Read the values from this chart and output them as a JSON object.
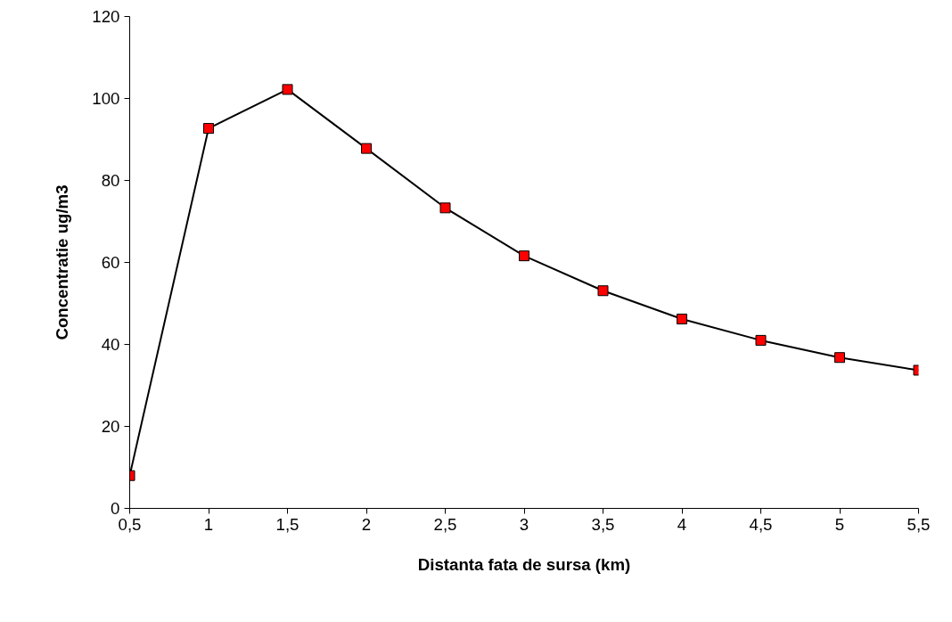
{
  "chart_data": {
    "type": "line",
    "xlabel": "Distanta fata de sursa (km)",
    "ylabel": "Concentratie ug/m3",
    "x": [
      0.5,
      1,
      1.5,
      2,
      2.5,
      3,
      3.5,
      4,
      4.5,
      5,
      5.5
    ],
    "series": [
      {
        "color": "#ff0000",
        "values": [
          8,
          92.7,
          102.2,
          87.8,
          73.3,
          61.6,
          53.1,
          46.2,
          41.0,
          36.8,
          33.7
        ]
      }
    ],
    "xlim": [
      0.5,
      5.5
    ],
    "xticks": [
      {
        "value": 0.5,
        "label": "0,5"
      },
      1,
      {
        "value": 1.5,
        "label": "1,5"
      },
      2,
      {
        "value": 2.5,
        "label": "2,5"
      },
      3,
      {
        "value": 3.5,
        "label": "3,5"
      },
      4,
      {
        "value": 4.5,
        "label": "4,5"
      },
      5,
      {
        "value": 5.5,
        "label": "5,5"
      }
    ],
    "ylim": [
      0,
      120
    ],
    "yticks": [
      0,
      20,
      40,
      60,
      80,
      100,
      120
    ],
    "grid": false,
    "marker": "square",
    "line_style": "solid"
  }
}
